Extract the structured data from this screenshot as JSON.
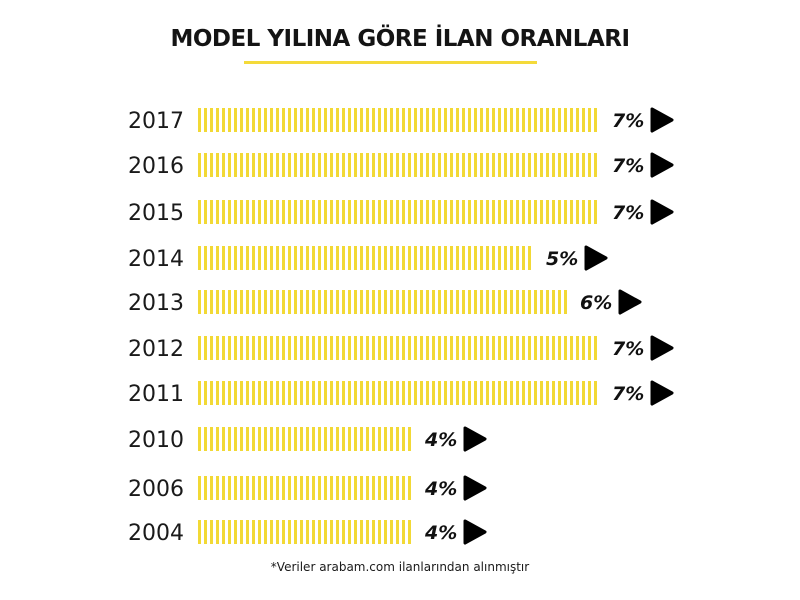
{
  "colors": {
    "bar": "#f2d935",
    "accent": "#f4da3a",
    "marker": "#000000",
    "text": "#141414"
  },
  "icons": {
    "marker": "play-triangle-icon"
  },
  "footnote": "*Veriler arabam.com ilanlarından alınmıştır",
  "chart_data": {
    "type": "bar",
    "orientation": "horizontal",
    "title": "MODEL YILINA GÖRE İLAN ORANLARI",
    "unit": "%",
    "categories": [
      "2017",
      "2016",
      "2015",
      "2014",
      "2013",
      "2012",
      "2011",
      "2010",
      "2006",
      "2004"
    ],
    "values": [
      7,
      7,
      7,
      5,
      6,
      7,
      7,
      4,
      4,
      4
    ],
    "labels": [
      "7%",
      "7%",
      "7%",
      "5%",
      "6%",
      "7%",
      "7%",
      "4%",
      "4%",
      "4%"
    ],
    "grid": false,
    "legend": "none"
  }
}
